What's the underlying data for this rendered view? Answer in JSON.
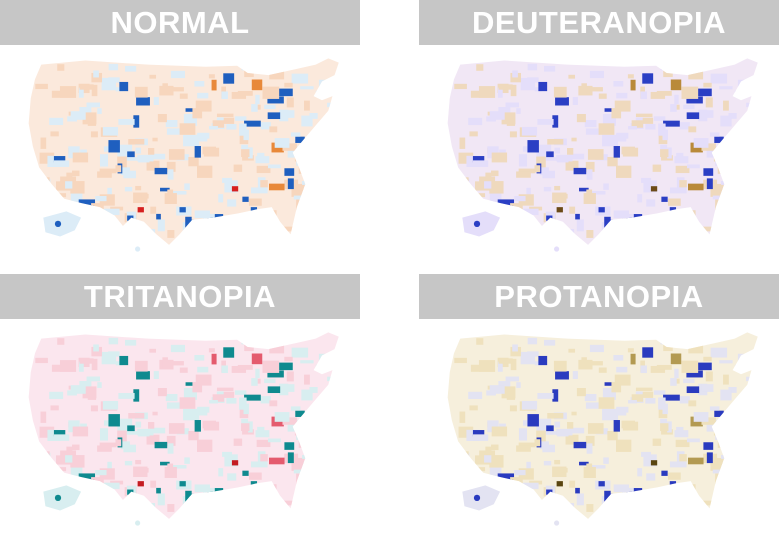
{
  "panels": [
    {
      "title": "NORMAL",
      "palette": {
        "land": "#fbe9dc",
        "light_a": "#dcecf7",
        "light_b": "#f7d6bd",
        "strong_a": "#1f5fbf",
        "strong_b": "#e8893a",
        "accent": "#d62020"
      }
    },
    {
      "title": "DEUTERANOPIA",
      "palette": {
        "land": "#f1e7f5",
        "light_a": "#e4defa",
        "light_b": "#efd9bd",
        "strong_a": "#2b3fc4",
        "strong_b": "#b98a3a",
        "accent": "#6b4a18"
      }
    },
    {
      "title": "TRITANOPIA",
      "palette": {
        "land": "#fbe6ee",
        "light_a": "#d8eef0",
        "light_b": "#f8cfd8",
        "strong_a": "#0f8a8f",
        "strong_b": "#e45b6e",
        "accent": "#c41c22"
      }
    },
    {
      "title": "PROTANOPIA",
      "palette": {
        "land": "#f6efdc",
        "light_a": "#e3e3f2",
        "light_b": "#efe1bd",
        "strong_a": "#2a3bbf",
        "strong_b": "#b39a52",
        "accent": "#5a4510"
      }
    }
  ]
}
